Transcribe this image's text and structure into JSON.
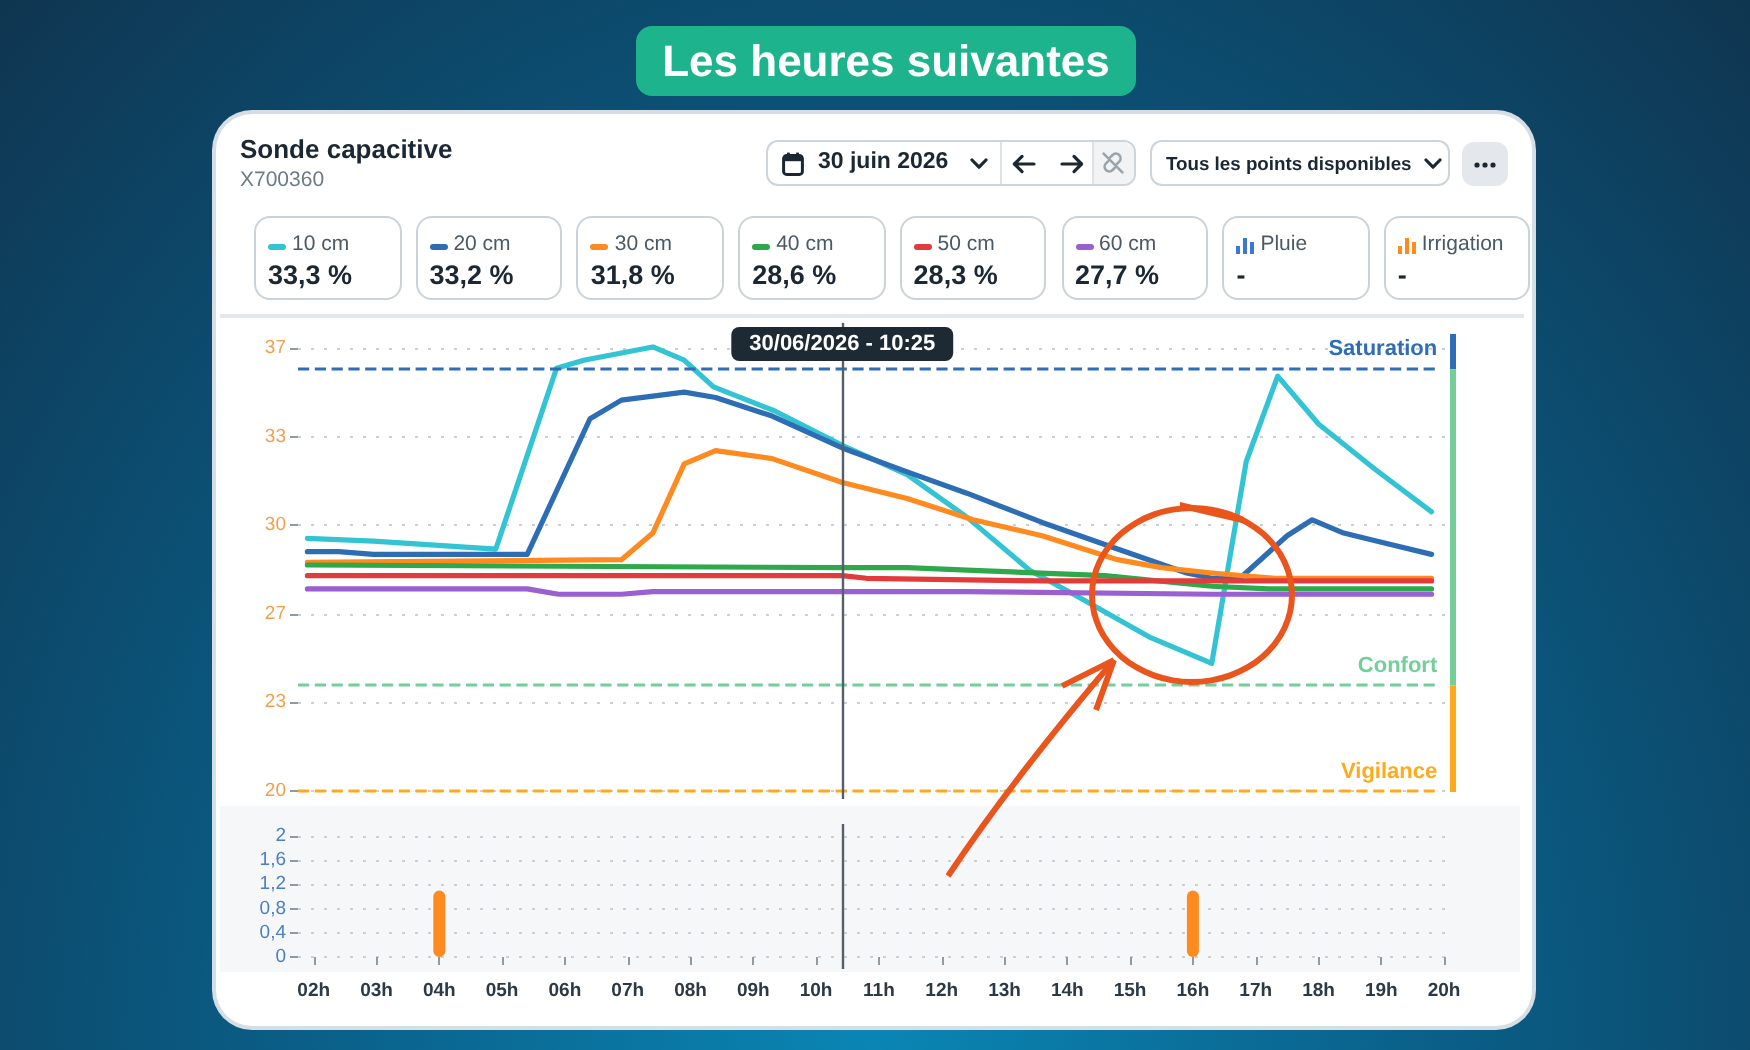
{
  "chart_data": [
    {
      "type": "line",
      "title": "Sonde capacitive",
      "subtitle": "X700360",
      "annotations": [
        "Les heures suivantes",
        "30 juin 2026",
        "Tous les points disponibles",
        "33,3 %",
        "33,2 %",
        "31,8 %",
        "28,6 %",
        "28,3 %",
        "27,7 %"
      ],
      "legend": "top",
      "series": [
        {
          "name": "10 cm",
          "color": "#33c4d4",
          "x": [
            "2026-06-30T01:54",
            "2026-06-30T02:57",
            "2026-06-30T04:54",
            "2026-06-30T05:52",
            "2026-06-30T06:18",
            "2026-06-30T07:24",
            "2026-06-30T07:54",
            "2026-06-30T08:22",
            "2026-06-30T09:20",
            "2026-06-30T10:25",
            "2026-06-30T11:27",
            "2026-06-30T12:24",
            "2026-06-30T13:24",
            "2026-06-30T14:06",
            "2026-06-30T15:18",
            "2026-06-30T16:18",
            "2026-06-30T16:51",
            "2026-06-30T17:21",
            "2026-06-30T18:00",
            "2026-06-30T18:54",
            "2026-06-30T19:48"
          ],
          "values": [
            29.5,
            29.4,
            29.1,
            35.9,
            36.2,
            36.7,
            36.2,
            35.2,
            34.3,
            33.0,
            31.9,
            30.3,
            28.3,
            27.4,
            25.8,
            24.8,
            32.4,
            35.6,
            33.8,
            32.1,
            30.5
          ]
        },
        {
          "name": "20 cm",
          "color": "#2d6db3",
          "x": [
            "2026-06-30T01:54",
            "2026-06-30T02:24",
            "2026-06-30T02:57",
            "2026-06-30T05:24",
            "2026-06-30T06:24",
            "2026-06-30T06:54",
            "2026-06-30T07:54",
            "2026-06-30T08:24",
            "2026-06-30T09:18",
            "2026-06-30T10:25",
            "2026-06-30T11:27",
            "2026-06-30T12:24",
            "2026-06-30T13:36",
            "2026-06-30T14:48",
            "2026-06-30T15:54",
            "2026-06-30T16:18",
            "2026-06-30T16:45",
            "2026-06-30T17:30",
            "2026-06-30T17:54",
            "2026-06-30T18:24",
            "2026-06-30T19:06",
            "2026-06-30T19:48"
          ],
          "values": [
            29.0,
            29.0,
            28.9,
            28.9,
            34.0,
            34.7,
            35.0,
            34.8,
            34.1,
            32.9,
            32.0,
            31.2,
            30.1,
            29.1,
            28.2,
            28.0,
            28.0,
            29.6,
            30.2,
            29.7,
            29.3,
            28.9
          ]
        },
        {
          "name": "30 cm",
          "color": "#ff8a1f",
          "x": [
            "2026-06-30T01:54",
            "2026-06-30T06:54",
            "2026-06-30T07:24",
            "2026-06-30T07:54",
            "2026-06-30T08:24",
            "2026-06-30T09:18",
            "2026-06-30T10:25",
            "2026-06-30T11:27",
            "2026-06-30T12:30",
            "2026-06-30T13:36",
            "2026-06-30T14:48",
            "2026-06-30T15:30",
            "2026-06-30T16:18",
            "2026-06-30T17:18",
            "2026-06-30T19:48"
          ],
          "values": [
            28.6,
            28.7,
            29.7,
            32.3,
            32.8,
            32.5,
            31.6,
            31.0,
            30.2,
            29.6,
            28.7,
            28.4,
            28.2,
            28.0,
            28.0
          ]
        },
        {
          "name": "40 cm",
          "color": "#2ea84a",
          "x": [
            "2026-06-30T01:54",
            "2026-06-30T10:25",
            "2026-06-30T11:27",
            "2026-06-30T12:30",
            "2026-06-30T14:36",
            "2026-06-30T16:18",
            "2026-06-30T17:12",
            "2026-06-30T19:48"
          ],
          "values": [
            28.5,
            28.4,
            28.4,
            28.3,
            28.1,
            27.7,
            27.6,
            27.6
          ]
        },
        {
          "name": "50 cm",
          "color": "#e23b3b",
          "x": [
            "2026-06-30T01:54",
            "2026-06-30T10:25",
            "2026-06-30T10:48",
            "2026-06-30T13:36",
            "2026-06-30T16:18",
            "2026-06-30T19:48"
          ],
          "values": [
            28.1,
            28.1,
            28.0,
            27.9,
            27.9,
            27.9
          ]
        },
        {
          "name": "60 cm",
          "color": "#9a5fd0",
          "x": [
            "2026-06-30T01:54",
            "2026-06-30T05:24",
            "2026-06-30T05:54",
            "2026-06-30T06:54",
            "2026-06-30T07:24",
            "2026-06-30T10:25",
            "2026-06-30T12:24",
            "2026-06-30T16:18",
            "2026-06-30T19:48"
          ],
          "values": [
            27.6,
            27.6,
            27.4,
            27.4,
            27.5,
            27.5,
            27.5,
            27.4,
            27.4
          ]
        }
      ],
      "xlim": [
        "2026-06-30T01:45",
        "2026-06-30T20:03"
      ],
      "ylim": [
        19.7,
        37.6
      ],
      "yticks": [
        20,
        {
          "value": 23.33,
          "label": "23"
        },
        {
          "value": 26.67,
          "label": "27"
        },
        30,
        {
          "value": 33.33,
          "label": "33"
        },
        {
          "value": 36.67,
          "label": "37"
        }
      ],
      "tick_labels": "y",
      "grid": "y",
      "ref_lines": [
        {
          "axis": "y",
          "value": 35.9,
          "label": "Saturation",
          "color": "#2f6db8",
          "line_style": "dashed"
        },
        {
          "axis": "y",
          "value": 24.0,
          "label": "Confort",
          "color": "#72cf99",
          "line_style": "dashed"
        },
        {
          "axis": "y",
          "value": 20,
          "label": "Vigilance",
          "color": "#ffaa1a",
          "line_style": "dashed"
        },
        {
          "axis": "x",
          "value": "2026-06-30T10:25",
          "label": "30/06/2026 - 10:25",
          "color": "#55606a"
        }
      ]
    },
    {
      "type": "bar",
      "x": [
        "2026-06-30T04:00",
        "2026-06-30T16:00"
      ],
      "legend": "top",
      "annotations": [
        "-",
        "-"
      ],
      "series": [
        {
          "name": "Pluie",
          "color": "#3b78d0",
          "values": [
            null,
            null
          ]
        },
        {
          "name": "Irrigation",
          "color": "#ff8a1f",
          "values": [
            1.1,
            1.1
          ]
        }
      ],
      "xlim": [
        "2026-06-30T01:45",
        "2026-06-30T20:03"
      ],
      "xticks": [
        {
          "value": "2026-06-30T02:00",
          "label": "02h"
        },
        {
          "value": "2026-06-30T03:00",
          "label": "03h"
        },
        {
          "value": "2026-06-30T04:00",
          "label": "04h"
        },
        {
          "value": "2026-06-30T05:00",
          "label": "05h"
        },
        {
          "value": "2026-06-30T06:00",
          "label": "06h"
        },
        {
          "value": "2026-06-30T07:00",
          "label": "07h"
        },
        {
          "value": "2026-06-30T08:00",
          "label": "08h"
        },
        {
          "value": "2026-06-30T09:00",
          "label": "09h"
        },
        {
          "value": "2026-06-30T10:00",
          "label": "10h"
        },
        {
          "value": "2026-06-30T11:00",
          "label": "11h"
        },
        {
          "value": "2026-06-30T12:00",
          "label": "12h"
        },
        {
          "value": "2026-06-30T13:00",
          "label": "13h"
        },
        {
          "value": "2026-06-30T14:00",
          "label": "14h"
        },
        {
          "value": "2026-06-30T15:00",
          "label": "15h"
        },
        {
          "value": "2026-06-30T16:00",
          "label": "16h"
        },
        {
          "value": "2026-06-30T17:00",
          "label": "17h"
        },
        {
          "value": "2026-06-30T18:00",
          "label": "18h"
        },
        {
          "value": "2026-06-30T19:00",
          "label": "19h"
        },
        {
          "value": "2026-06-30T20:00",
          "label": "20h"
        }
      ],
      "ylim": [
        -0.2,
        2.2
      ],
      "yticks": [
        0,
        {
          "value": 0.4,
          "label": "0,4"
        },
        {
          "value": 0.8,
          "label": "0,8"
        },
        {
          "value": 1.2,
          "label": "1,2"
        },
        {
          "value": 1.6,
          "label": "1,6"
        },
        2
      ],
      "grid": "y",
      "ref_lines": [
        {
          "axis": "x",
          "value": "2026-06-30T10:25",
          "color": "#55606a"
        }
      ]
    }
  ]
}
